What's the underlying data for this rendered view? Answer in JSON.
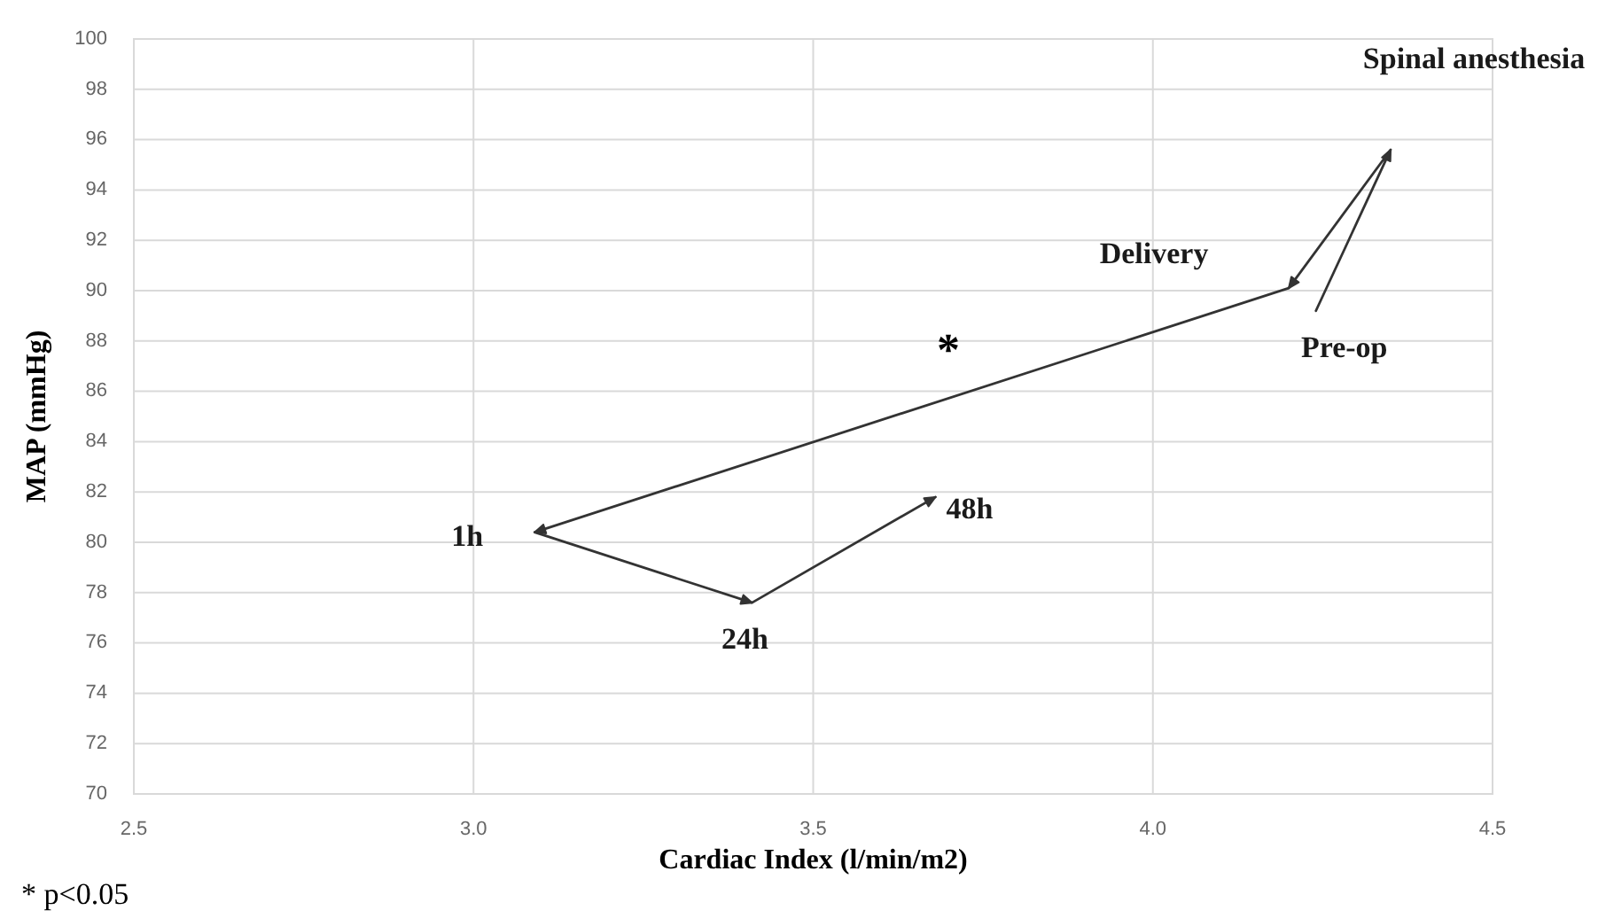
{
  "chart_data": {
    "type": "line",
    "xlabel": "Cardiac Index (l/min/m2)",
    "ylabel": "MAP (mmHg)",
    "x": [
      4.24,
      4.35,
      4.2,
      3.09,
      3.41,
      3.68
    ],
    "series": [
      {
        "color": "#333333",
        "values": [
          89.2,
          95.6,
          90.1,
          80.4,
          77.6,
          81.8
        ]
      }
    ],
    "xlim": [
      2.5,
      4.5
    ],
    "xticks": [
      2.5,
      {
        "value": 3,
        "label": "3.0"
      },
      3.5,
      {
        "value": 4,
        "label": "4.0"
      },
      4.5
    ],
    "ylim": [
      70,
      100
    ],
    "yticks": [
      70,
      72,
      74,
      76,
      78,
      80,
      82,
      84,
      86,
      88,
      90,
      92,
      94,
      96,
      98,
      100
    ],
    "grid": true,
    "marker": "none",
    "line_style": "solid",
    "annotations": [
      {
        "text": "Pre-op",
        "x": 4.24,
        "y": 89.2
      },
      {
        "text": "Spinal anesthesia",
        "x": 4.35,
        "y": 95.6
      },
      {
        "text": "Delivery",
        "x": 4.2,
        "y": 90.1
      },
      {
        "text": "1h",
        "x": 3.09,
        "y": 80.4
      },
      {
        "text": "24h",
        "x": 3.41,
        "y": 77.6
      },
      {
        "text": "48h",
        "x": 3.68,
        "y": 81.8
      },
      "*",
      "* p<0.05"
    ]
  }
}
